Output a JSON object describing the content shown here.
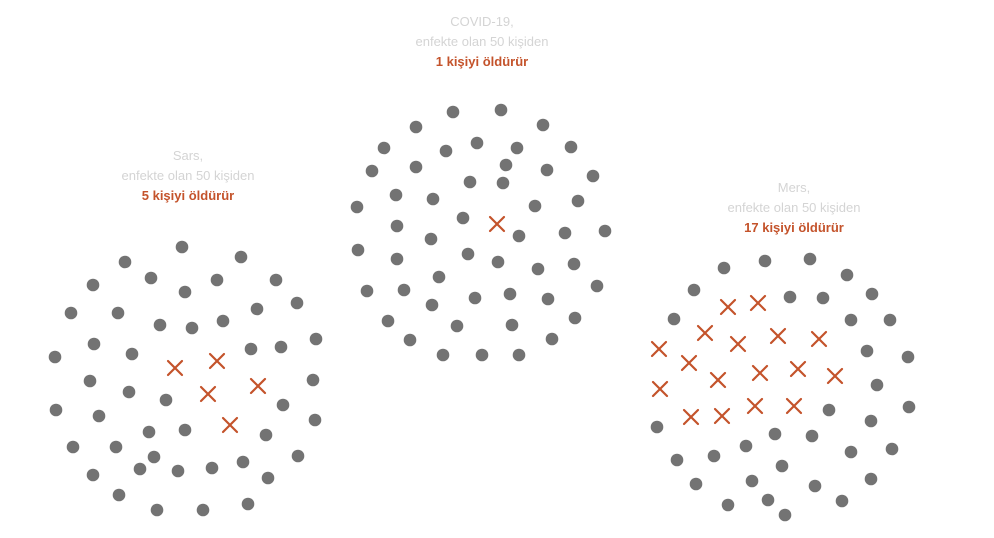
{
  "colors": {
    "dot": "#737373",
    "cross": "#c4532b",
    "text_muted": "#d4d4d4",
    "text_accent": "#c4532b"
  },
  "clusters": [
    {
      "id": "covid",
      "name": "COVID-19,",
      "desc": "enfekte olan 50 kişiden",
      "kill": "1 kişiyi öldürür",
      "total": 50,
      "deaths": 1
    },
    {
      "id": "sars",
      "name": "Sars,",
      "desc": "enfekte olan 50 kişiden",
      "kill": "5 kişiyi öldürür",
      "total": 50,
      "deaths": 5
    },
    {
      "id": "mers",
      "name": "Mers,",
      "desc": "enfekte olan 50 kişiden",
      "kill": "17 kişiyi öldürür",
      "total": 50,
      "deaths": 17
    }
  ]
}
